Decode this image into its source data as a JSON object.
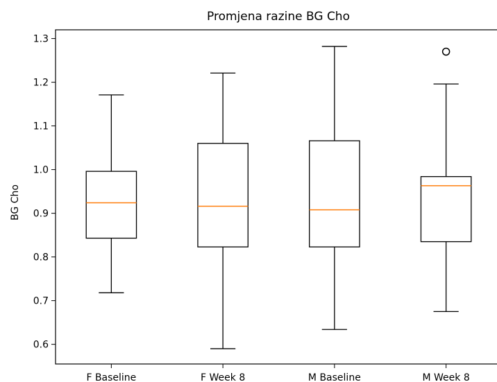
{
  "chart_data": {
    "type": "box",
    "title": "Promjena razine BG Cho",
    "xlabel": "",
    "ylabel": "BG Cho",
    "ylim": [
      0.555,
      1.32
    ],
    "yticks": [
      0.6,
      0.7,
      0.8,
      0.9,
      1.0,
      1.1,
      1.2,
      1.3
    ],
    "ytick_labels": [
      "0.6",
      "0.7",
      "0.8",
      "0.9",
      "1.0",
      "1.1",
      "1.2",
      "1.3"
    ],
    "grid": false,
    "colors": {
      "box": "#000000",
      "median": "#ff7f0e",
      "outlier": "#000000"
    },
    "boxes": [
      {
        "label": "F Baseline",
        "whisker_low": 0.718,
        "q1": 0.843,
        "median": 0.924,
        "q3": 0.996,
        "whisker_high": 1.171,
        "outliers": []
      },
      {
        "label": "F Week 8",
        "whisker_low": 0.59,
        "q1": 0.823,
        "median": 0.916,
        "q3": 1.06,
        "whisker_high": 1.221,
        "outliers": []
      },
      {
        "label": "M Baseline",
        "whisker_low": 0.634,
        "q1": 0.823,
        "median": 0.908,
        "q3": 1.066,
        "whisker_high": 1.282,
        "outliers": []
      },
      {
        "label": "M Week 8",
        "whisker_low": 0.675,
        "q1": 0.835,
        "median": 0.963,
        "q3": 0.984,
        "whisker_high": 1.196,
        "outliers": [
          1.27
        ]
      }
    ]
  }
}
